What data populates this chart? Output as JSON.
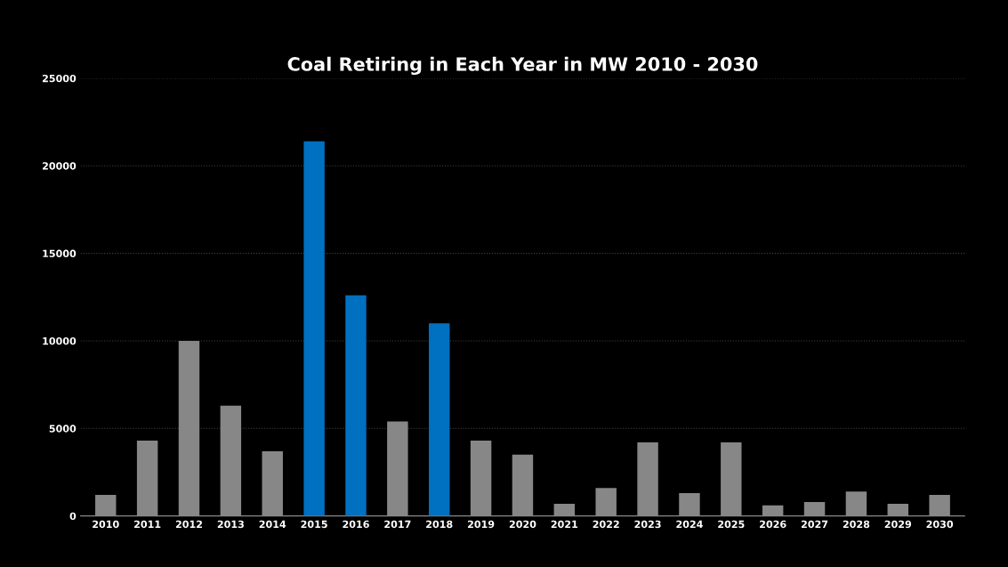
{
  "chart_data": {
    "type": "bar",
    "title": "Coal Retiring in Each Year in MW 2010 - 2030",
    "categories": [
      "2010",
      "2011",
      "2012",
      "2013",
      "2014",
      "2015",
      "2016",
      "2017",
      "2018",
      "2019",
      "2020",
      "2021",
      "2022",
      "2023",
      "2024",
      "2025",
      "2026",
      "2027",
      "2028",
      "2029",
      "2030"
    ],
    "values": [
      1200,
      4300,
      10000,
      6300,
      3700,
      21400,
      12600,
      5400,
      11000,
      4300,
      3500,
      700,
      1600,
      4200,
      1300,
      4200,
      600,
      800,
      1400,
      700,
      1200
    ],
    "colors": [
      "#878787",
      "#878787",
      "#878787",
      "#878787",
      "#878787",
      "#0070c0",
      "#0070c0",
      "#878787",
      "#0070c0",
      "#878787",
      "#878787",
      "#878787",
      "#878787",
      "#878787",
      "#878787",
      "#878787",
      "#878787",
      "#878787",
      "#878787",
      "#878787",
      "#878787"
    ],
    "ylim": [
      0,
      25000
    ],
    "yticks": [
      0,
      5000,
      10000,
      15000,
      20000,
      25000
    ],
    "grid": "y",
    "legend": false
  }
}
